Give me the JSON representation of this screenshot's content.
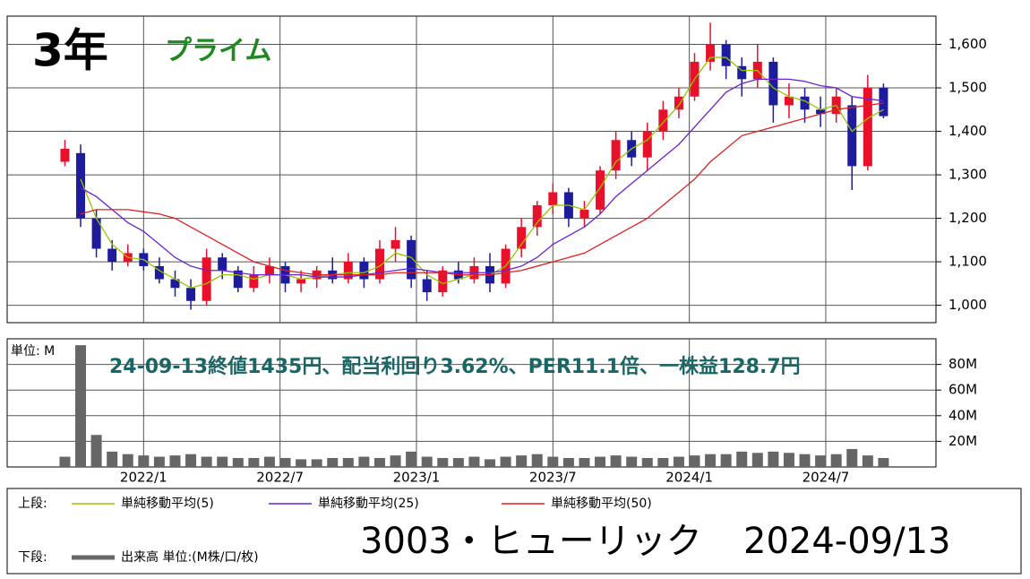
{
  "chart_data": [
    {
      "type": "candlestick",
      "title": "3年",
      "subtitle": "プライム",
      "x": [
        0,
        3,
        6,
        9,
        12,
        15,
        18,
        21,
        24,
        27,
        30,
        33,
        36,
        39,
        42,
        45,
        48,
        51,
        54,
        57,
        60,
        63,
        66,
        69,
        72,
        75,
        78,
        81,
        84,
        87,
        90,
        93,
        96,
        99,
        102,
        105,
        108,
        111,
        114,
        117,
        120,
        123,
        126,
        129,
        132,
        135,
        138,
        141,
        144,
        147,
        150,
        153,
        156
      ],
      "xlim": [
        -11,
        166
      ],
      "open": [
        1330,
        1350,
        1200,
        1130,
        1100,
        1120,
        1090,
        1060,
        1040,
        1010,
        1110,
        1080,
        1040,
        1070,
        1090,
        1050,
        1060,
        1080,
        1060,
        1100,
        1060,
        1130,
        1150,
        1060,
        1030,
        1080,
        1060,
        1090,
        1050,
        1130,
        1180,
        1230,
        1260,
        1200,
        1220,
        1310,
        1380,
        1340,
        1400,
        1450,
        1480,
        1560,
        1600,
        1550,
        1520,
        1560,
        1460,
        1480,
        1450,
        1440,
        1460,
        1320,
        1500
      ],
      "high": [
        1380,
        1370,
        1220,
        1150,
        1140,
        1130,
        1110,
        1080,
        1060,
        1130,
        1120,
        1090,
        1090,
        1110,
        1100,
        1080,
        1090,
        1110,
        1120,
        1110,
        1150,
        1180,
        1160,
        1080,
        1090,
        1100,
        1110,
        1120,
        1140,
        1200,
        1240,
        1280,
        1270,
        1240,
        1320,
        1400,
        1400,
        1420,
        1470,
        1500,
        1580,
        1650,
        1610,
        1570,
        1600,
        1570,
        1510,
        1500,
        1480,
        1500,
        1480,
        1530,
        1510
      ],
      "low": [
        1320,
        1180,
        1110,
        1080,
        1090,
        1080,
        1050,
        1020,
        990,
        1000,
        1060,
        1030,
        1030,
        1050,
        1030,
        1030,
        1040,
        1050,
        1050,
        1040,
        1050,
        1100,
        1040,
        1010,
        1020,
        1050,
        1050,
        1030,
        1040,
        1110,
        1160,
        1210,
        1180,
        1180,
        1210,
        1290,
        1320,
        1310,
        1380,
        1430,
        1470,
        1540,
        1520,
        1480,
        1500,
        1420,
        1430,
        1420,
        1410,
        1420,
        1265,
        1310,
        1430
      ],
      "close": [
        1360,
        1200,
        1130,
        1100,
        1120,
        1090,
        1060,
        1040,
        1010,
        1110,
        1080,
        1040,
        1070,
        1090,
        1050,
        1060,
        1080,
        1060,
        1100,
        1060,
        1130,
        1150,
        1060,
        1030,
        1080,
        1060,
        1090,
        1050,
        1130,
        1180,
        1230,
        1260,
        1200,
        1220,
        1310,
        1380,
        1340,
        1400,
        1450,
        1480,
        1560,
        1600,
        1550,
        1520,
        1560,
        1460,
        1480,
        1450,
        1440,
        1480,
        1320,
        1500,
        1435
      ],
      "up_color": "#e8102a",
      "down_color": "#1c1c9c",
      "series": [
        {
          "name": "単純移動平均(5)",
          "color": "#99c400",
          "values": [
            null,
            1290,
            1200,
            1140,
            1110,
            1105,
            1080,
            1060,
            1040,
            1050,
            1070,
            1070,
            1060,
            1070,
            1070,
            1060,
            1065,
            1070,
            1075,
            1075,
            1090,
            1120,
            1110,
            1070,
            1050,
            1060,
            1070,
            1070,
            1090,
            1140,
            1190,
            1230,
            1230,
            1220,
            1270,
            1330,
            1360,
            1380,
            1420,
            1460,
            1520,
            1570,
            1570,
            1540,
            1540,
            1500,
            1480,
            1470,
            1450,
            1460,
            1400,
            1430,
            1450
          ]
        },
        {
          "name": "単純移動平均(25)",
          "color": "#6a22d6",
          "values": [
            null,
            1270,
            1250,
            1220,
            1190,
            1170,
            1140,
            1110,
            1090,
            1080,
            1080,
            1075,
            1070,
            1070,
            1070,
            1070,
            1065,
            1065,
            1065,
            1070,
            1075,
            1080,
            1085,
            1080,
            1075,
            1075,
            1075,
            1075,
            1080,
            1090,
            1110,
            1140,
            1160,
            1180,
            1210,
            1250,
            1280,
            1310,
            1340,
            1370,
            1410,
            1450,
            1490,
            1510,
            1520,
            1520,
            1520,
            1515,
            1505,
            1500,
            1480,
            1475,
            1470
          ]
        },
        {
          "name": "単純移動平均(50)",
          "color": "#e02020",
          "values": [
            null,
            1210,
            1220,
            1220,
            1220,
            1215,
            1210,
            1200,
            1180,
            1160,
            1140,
            1120,
            1100,
            1090,
            1080,
            1075,
            1070,
            1070,
            1070,
            1070,
            1070,
            1075,
            1075,
            1075,
            1075,
            1070,
            1070,
            1070,
            1075,
            1080,
            1090,
            1100,
            1110,
            1120,
            1140,
            1160,
            1180,
            1200,
            1230,
            1260,
            1290,
            1330,
            1360,
            1390,
            1400,
            1410,
            1420,
            1430,
            1440,
            1450,
            1455,
            1460,
            1465
          ]
        }
      ],
      "ylim": [
        960,
        1665
      ],
      "yticks": [
        {
          "value": 1000,
          "label": "1,000"
        },
        {
          "value": 1100,
          "label": "1,100"
        },
        {
          "value": 1200,
          "label": "1,200"
        },
        {
          "value": 1300,
          "label": "1,300"
        },
        {
          "value": 1400,
          "label": "1,400"
        },
        {
          "value": 1500,
          "label": "1,500"
        },
        {
          "value": 1600,
          "label": "1,600"
        }
      ],
      "grid": true
    },
    {
      "type": "bar",
      "ylabel": "単位: M",
      "annotation": "24-09-13終値1435円、配当利回り3.62%、PER11.1倍、一株益128.7円",
      "x": [
        0,
        3,
        6,
        9,
        12,
        15,
        18,
        21,
        24,
        27,
        30,
        33,
        36,
        39,
        42,
        45,
        48,
        51,
        54,
        57,
        60,
        63,
        66,
        69,
        72,
        75,
        78,
        81,
        84,
        87,
        90,
        93,
        96,
        99,
        102,
        105,
        108,
        111,
        114,
        117,
        120,
        123,
        126,
        129,
        132,
        135,
        138,
        141,
        144,
        147,
        150,
        153,
        156
      ],
      "xlim": [
        -11,
        166
      ],
      "xticks": [
        {
          "value": 15,
          "label": "2022/1"
        },
        {
          "value": 41,
          "label": "2022/7"
        },
        {
          "value": 67,
          "label": "2023/1"
        },
        {
          "value": 93,
          "label": "2023/7"
        },
        {
          "value": 119,
          "label": "2024/1"
        },
        {
          "value": 145,
          "label": "2024/7"
        }
      ],
      "series": [
        {
          "name": "出来高 単位:(M株/口/枚)",
          "color": "#666666",
          "values": [
            8,
            95,
            25,
            12,
            10,
            9,
            8,
            9,
            10,
            8,
            8,
            7,
            7,
            8,
            7,
            6,
            6,
            7,
            7,
            8,
            7,
            9,
            12,
            8,
            7,
            7,
            8,
            6,
            8,
            9,
            10,
            8,
            7,
            7,
            8,
            9,
            8,
            7,
            7,
            8,
            9,
            10,
            10,
            12,
            11,
            12,
            11,
            10,
            9,
            10,
            14,
            9,
            7
          ]
        }
      ],
      "ylim": [
        0,
        100
      ],
      "yticks": [
        {
          "value": 20,
          "label": "20M"
        },
        {
          "value": 40,
          "label": "40M"
        },
        {
          "value": 60,
          "label": "60M"
        },
        {
          "value": 80,
          "label": "80M"
        }
      ],
      "grid": true
    }
  ],
  "legend": {
    "upper_label": "上段:",
    "lower_label": "下段:"
  },
  "stock": "3003・ヒューリック",
  "date": "2024-09/13"
}
